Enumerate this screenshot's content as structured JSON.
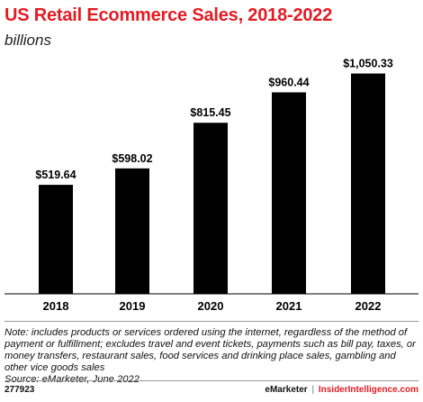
{
  "header": {
    "title": "US Retail Ecommerce Sales, 2018-2022",
    "subtitle": "billions"
  },
  "chart_data": {
    "type": "bar",
    "categories": [
      "2018",
      "2019",
      "2020",
      "2021",
      "2022"
    ],
    "values": [
      519.64,
      598.02,
      815.45,
      960.44,
      1050.33
    ],
    "labels": [
      "$519.64",
      "$598.02",
      "$815.45",
      "$960.44",
      "$1,050.33"
    ],
    "ylim": [
      0,
      1100
    ],
    "bar_color": "#000000",
    "grid": false
  },
  "notes": {
    "note": "Note: includes products or services ordered using the internet, regardless of the method of payment or fulfillment; excludes travel and event tickets, payments such as bill pay, taxes, or money transfers, restaurant sales, food services and drinking place sales, gambling and other vice goods sales",
    "source": "Source: eMarketer, June 2022"
  },
  "footer": {
    "chart_id": "277923",
    "brand": "eMarketer",
    "separator": "|",
    "site": "InsiderIntelligence.com"
  },
  "colors": {
    "accent": "#e31b23"
  }
}
